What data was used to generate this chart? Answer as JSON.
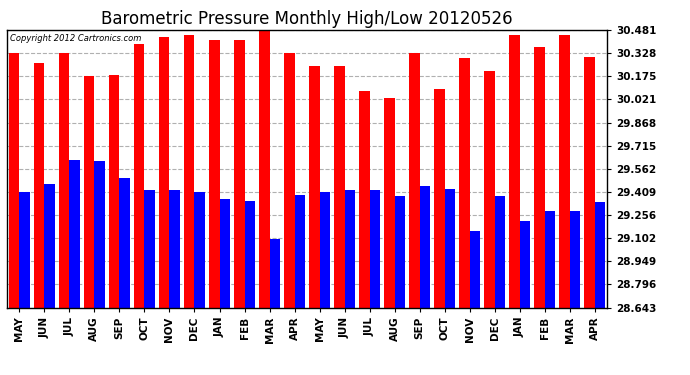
{
  "title": "Barometric Pressure Monthly High/Low 20120526",
  "copyright": "Copyright 2012 Cartronics.com",
  "categories": [
    "MAY",
    "JUN",
    "JUL",
    "AUG",
    "SEP",
    "OCT",
    "NOV",
    "DEC",
    "JAN",
    "FEB",
    "MAR",
    "APR",
    "MAY",
    "JUN",
    "JUL",
    "AUG",
    "SEP",
    "OCT",
    "NOV",
    "DEC",
    "JAN",
    "FEB",
    "MAR",
    "APR"
  ],
  "highs": [
    30.33,
    30.26,
    30.33,
    30.175,
    30.185,
    30.39,
    30.435,
    30.445,
    30.415,
    30.415,
    30.475,
    30.33,
    30.24,
    30.24,
    30.08,
    30.03,
    30.33,
    30.09,
    30.295,
    30.21,
    30.445,
    30.37,
    30.45,
    30.3
  ],
  "lows": [
    29.41,
    29.46,
    29.62,
    29.615,
    29.5,
    29.42,
    29.42,
    29.41,
    29.36,
    29.35,
    29.1,
    29.39,
    29.41,
    29.42,
    29.42,
    29.38,
    29.45,
    29.43,
    29.15,
    29.38,
    29.215,
    29.28,
    29.28,
    29.34
  ],
  "ymin": 28.643,
  "ymax": 30.481,
  "yticks": [
    30.481,
    30.328,
    30.175,
    30.021,
    29.868,
    29.715,
    29.562,
    29.409,
    29.256,
    29.102,
    28.949,
    28.796,
    28.643
  ],
  "high_color": "#ff0000",
  "low_color": "#0000ff",
  "bg_color": "#ffffff",
  "title_fontsize": 12,
  "bar_width": 0.42,
  "grid_color": "#b0b0b0"
}
